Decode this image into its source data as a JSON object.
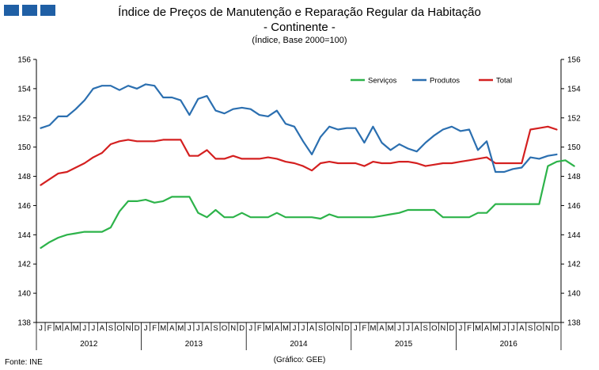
{
  "header": {
    "title_line1": "Índice de Preços de Manutenção e Reparação Regular da Habitação",
    "title_line2": "- Continente -",
    "subtitle": "(Índice, Base 2000=100)"
  },
  "footer": {
    "source": "Fonte: INE",
    "credit": "(Gráfico: GEE)"
  },
  "colors": {
    "servicos": "#2db34a",
    "produtos": "#2b6fb0",
    "total": "#d42020",
    "axis": "#000000",
    "logo": "#1f5fa5"
  },
  "chart_data": {
    "type": "line",
    "title": "Índice de Preços de Manutenção e Reparação Regular da Habitação - Continente -",
    "ylabel": "(Índice, Base 2000=100)",
    "ylim": [
      138,
      156
    ],
    "yticks": [
      "138",
      "140",
      "142",
      "144",
      "146",
      "148",
      "150",
      "152",
      "154",
      "156"
    ],
    "grid": false,
    "legend_position": "top-right",
    "month_labels": [
      "J",
      "F",
      "M",
      "A",
      "M",
      "J",
      "J",
      "A",
      "S",
      "O",
      "N",
      "D",
      "J",
      "F",
      "M",
      "A",
      "M",
      "J",
      "J",
      "A",
      "S",
      "O",
      "N",
      "D",
      "J",
      "F",
      "M",
      "A",
      "M",
      "J",
      "J",
      "A",
      "S",
      "O",
      "N",
      "D",
      "J",
      "F",
      "M",
      "A",
      "M",
      "J",
      "J",
      "A",
      "S",
      "O",
      "N",
      "D",
      "J",
      "F",
      "M",
      "A",
      "M",
      "J",
      "J",
      "A",
      "S",
      "O",
      "N",
      "D"
    ],
    "year_labels": [
      "2012",
      "2013",
      "2014",
      "2015",
      "2016"
    ],
    "series": [
      {
        "name": "Serviços",
        "color_key": "servicos",
        "values": [
          143.1,
          143.5,
          143.8,
          144.0,
          144.1,
          144.2,
          144.2,
          144.2,
          144.5,
          145.6,
          146.3,
          146.3,
          146.4,
          146.2,
          146.3,
          146.6,
          146.6,
          146.6,
          145.5,
          145.2,
          145.7,
          145.2,
          145.2,
          145.5,
          145.2,
          145.2,
          145.2,
          145.5,
          145.2,
          145.2,
          145.2,
          145.2,
          145.1,
          145.4,
          145.2,
          145.2,
          145.2,
          145.2,
          145.2,
          145.3,
          145.4,
          145.5,
          145.7,
          145.7,
          145.7,
          145.7,
          145.2,
          145.2,
          145.2,
          145.2,
          145.5,
          145.5,
          146.1,
          146.1,
          146.1,
          146.1,
          146.1,
          146.1,
          148.7,
          149.0,
          149.1,
          148.7
        ]
      },
      {
        "name": "Produtos",
        "color_key": "produtos",
        "values": [
          151.3,
          151.5,
          152.1,
          152.1,
          152.6,
          153.2,
          154.0,
          154.2,
          154.2,
          153.9,
          154.2,
          154.0,
          154.3,
          154.2,
          153.4,
          153.4,
          153.2,
          152.2,
          153.3,
          153.5,
          152.5,
          152.3,
          152.6,
          152.7,
          152.6,
          152.2,
          152.1,
          152.5,
          151.6,
          151.4,
          150.4,
          149.5,
          150.7,
          151.4,
          151.2,
          151.3,
          151.3,
          150.3,
          151.4,
          150.3,
          149.8,
          150.2,
          149.9,
          149.7,
          150.3,
          150.8,
          151.2,
          151.4,
          151.1,
          151.2,
          149.8,
          150.4,
          148.3,
          148.3,
          148.5,
          148.6,
          149.3,
          149.2,
          149.4,
          149.5
        ]
      },
      {
        "name": "Total",
        "color_key": "total",
        "values": [
          147.4,
          147.8,
          148.2,
          148.3,
          148.6,
          148.9,
          149.3,
          149.6,
          150.2,
          150.4,
          150.5,
          150.4,
          150.4,
          150.4,
          150.5,
          150.5,
          150.5,
          149.4,
          149.4,
          149.8,
          149.2,
          149.2,
          149.4,
          149.2,
          149.2,
          149.2,
          149.3,
          149.2,
          149.0,
          148.9,
          148.7,
          148.4,
          148.9,
          149.0,
          148.9,
          148.9,
          148.9,
          148.7,
          149.0,
          148.9,
          148.9,
          149.0,
          149.0,
          148.9,
          148.7,
          148.8,
          148.9,
          148.9,
          149.0,
          149.1,
          149.2,
          149.3,
          148.9,
          148.9,
          148.9,
          148.9,
          151.2,
          151.3,
          151.4,
          151.2
        ]
      }
    ]
  }
}
